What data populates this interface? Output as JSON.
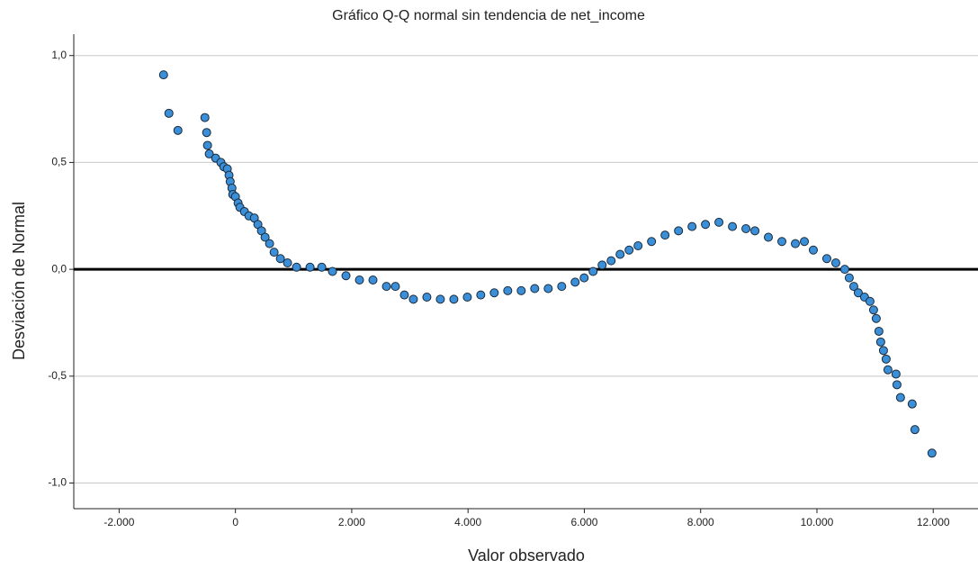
{
  "chart_data": {
    "type": "scatter",
    "title": "Gráfico Q-Q normal sin tendencia de net_income",
    "xlabel": "Valor observado",
    "ylabel": "Desviación de Normal",
    "color": "#3a8fd8",
    "grid": true,
    "reference_line": 0,
    "xlim": [
      -2780,
      12770
    ],
    "ylim": [
      -1.12,
      1.1
    ],
    "xticks": [
      {
        "value": -2000,
        "label": "-2.000"
      },
      0,
      {
        "value": 2000,
        "label": "2.000"
      },
      {
        "value": 4000,
        "label": "4.000"
      },
      {
        "value": 6000,
        "label": "6.000"
      },
      {
        "value": 8000,
        "label": "8.000"
      },
      {
        "value": 10000,
        "label": "10.000"
      },
      {
        "value": 12000,
        "label": "12.000"
      }
    ],
    "yticks": [
      {
        "value": 1.0,
        "label": "1,0"
      },
      {
        "value": 0.5,
        "label": "0,5"
      },
      {
        "value": 0.0,
        "label": "0,0"
      },
      {
        "value": -0.5,
        "label": "-0,5"
      },
      {
        "value": -1.0,
        "label": "-1,0"
      }
    ],
    "x": [
      -1236,
      -1144,
      -989,
      -525,
      -495,
      -480,
      -450,
      -340,
      -250,
      -200,
      -140,
      -110,
      -90,
      -60,
      -45,
      0,
      46,
      77,
      155,
      232,
      325,
      386,
      448,
      510,
      587,
      665,
      773,
      896,
      1051,
      1283,
      1484,
      1669,
      1901,
      2133,
      2365,
      2597,
      2751,
      2906,
      3060,
      3292,
      3524,
      3756,
      3988,
      4219,
      4451,
      4683,
      4915,
      5147,
      5379,
      5611,
      5842,
      5997,
      6151,
      6306,
      6461,
      6615,
      6770,
      6924,
      7156,
      7388,
      7620,
      7852,
      8083,
      8315,
      8547,
      8779,
      8934,
      9165,
      9397,
      9629,
      9784,
      9938,
      10170,
      10325,
      10479,
      10556,
      10634,
      10711,
      10819,
      10912,
      10974,
      11020,
      11066,
      11097,
      11144,
      11190,
      11221,
      11360,
      11376,
      11437,
      11638,
      11685,
      11978
    ],
    "y": [
      0.91,
      0.73,
      0.65,
      0.71,
      0.64,
      0.58,
      0.54,
      0.52,
      0.5,
      0.48,
      0.47,
      0.44,
      0.41,
      0.38,
      0.35,
      0.34,
      0.31,
      0.29,
      0.27,
      0.25,
      0.24,
      0.21,
      0.18,
      0.15,
      0.12,
      0.08,
      0.05,
      0.03,
      0.01,
      0.01,
      0.01,
      -0.01,
      -0.03,
      -0.05,
      -0.05,
      -0.08,
      -0.08,
      -0.12,
      -0.14,
      -0.13,
      -0.14,
      -0.14,
      -0.13,
      -0.12,
      -0.11,
      -0.1,
      -0.1,
      -0.09,
      -0.09,
      -0.08,
      -0.06,
      -0.04,
      -0.01,
      0.02,
      0.04,
      0.07,
      0.09,
      0.11,
      0.13,
      0.16,
      0.18,
      0.2,
      0.21,
      0.22,
      0.2,
      0.19,
      0.18,
      0.15,
      0.13,
      0.12,
      0.13,
      0.09,
      0.05,
      0.03,
      0.0,
      -0.04,
      -0.08,
      -0.11,
      -0.13,
      -0.15,
      -0.19,
      -0.23,
      -0.29,
      -0.34,
      -0.38,
      -0.42,
      -0.47,
      -0.49,
      -0.54,
      -0.6,
      -0.63,
      -0.75,
      -0.86
    ]
  }
}
